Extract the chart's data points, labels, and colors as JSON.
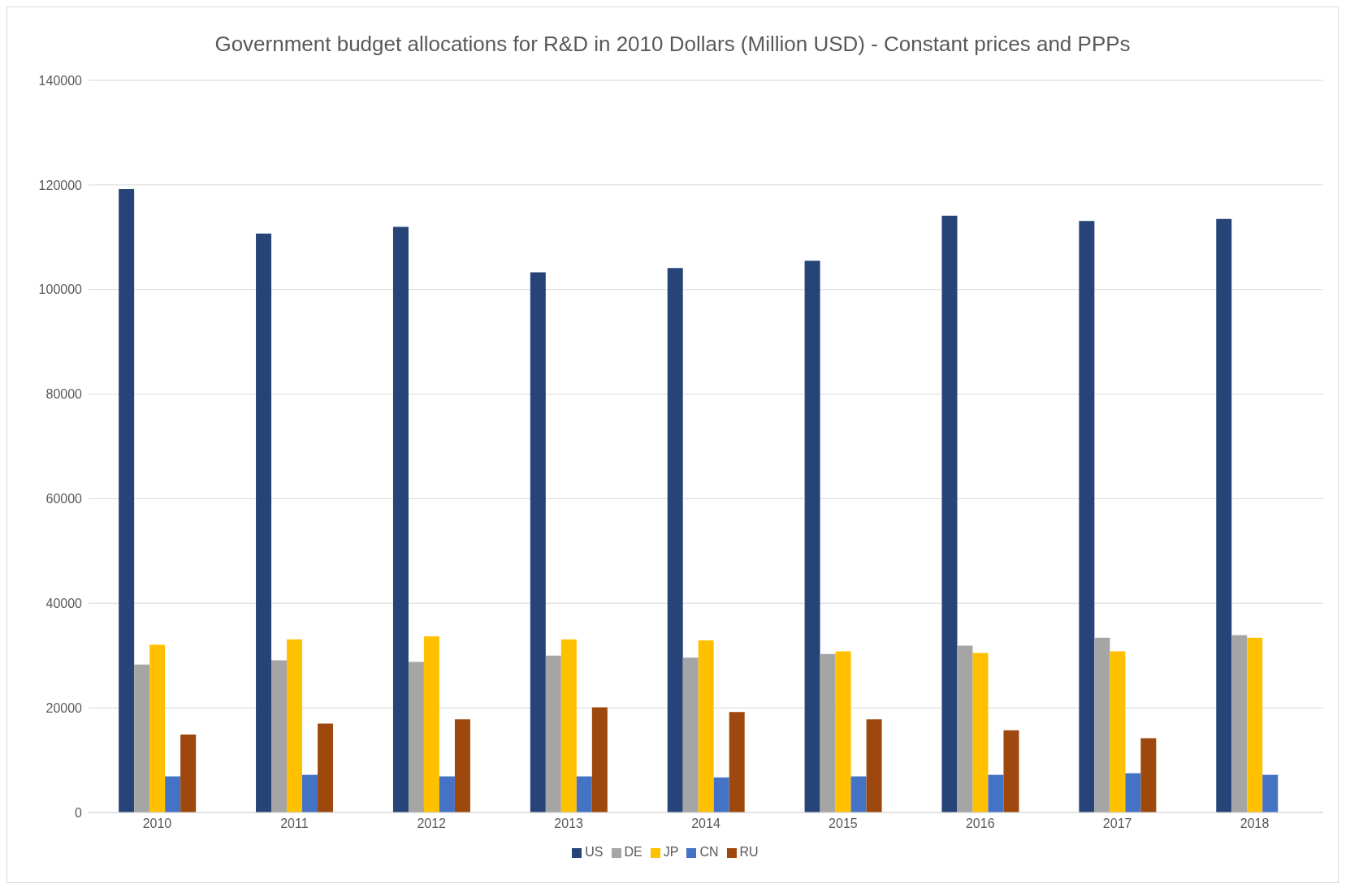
{
  "chart_data": {
    "type": "bar",
    "title": "Government budget allocations for R&D in  2010 Dollars (Million USD)  - Constant prices and PPPs",
    "categories": [
      "2010",
      "2011",
      "2012",
      "2013",
      "2014",
      "2015",
      "2016",
      "2017",
      "2018"
    ],
    "series": [
      {
        "name": "US",
        "color": "#264478",
        "values": [
          119200,
          110700,
          112000,
          103300,
          104100,
          105500,
          114100,
          113100,
          113500
        ]
      },
      {
        "name": "DE",
        "color": "#a5a5a5",
        "values": [
          28300,
          29100,
          28800,
          30000,
          29600,
          30300,
          31900,
          33400,
          33900
        ]
      },
      {
        "name": "JP",
        "color": "#ffc000",
        "values": [
          32100,
          33100,
          33700,
          33100,
          32900,
          30800,
          30500,
          30800,
          33400
        ]
      },
      {
        "name": "CN",
        "color": "#4472c4",
        "values": [
          6900,
          7200,
          6900,
          6900,
          6700,
          6900,
          7200,
          7500,
          7200
        ]
      },
      {
        "name": "RU",
        "color": "#9e480e",
        "values": [
          14900,
          17000,
          17800,
          20100,
          19200,
          17800,
          15700,
          14200,
          null
        ]
      }
    ],
    "ylim": [
      0,
      140000
    ],
    "yticks": [
      0,
      20000,
      40000,
      60000,
      80000,
      100000,
      120000,
      140000
    ],
    "grid": "y",
    "legend": "bottom"
  }
}
